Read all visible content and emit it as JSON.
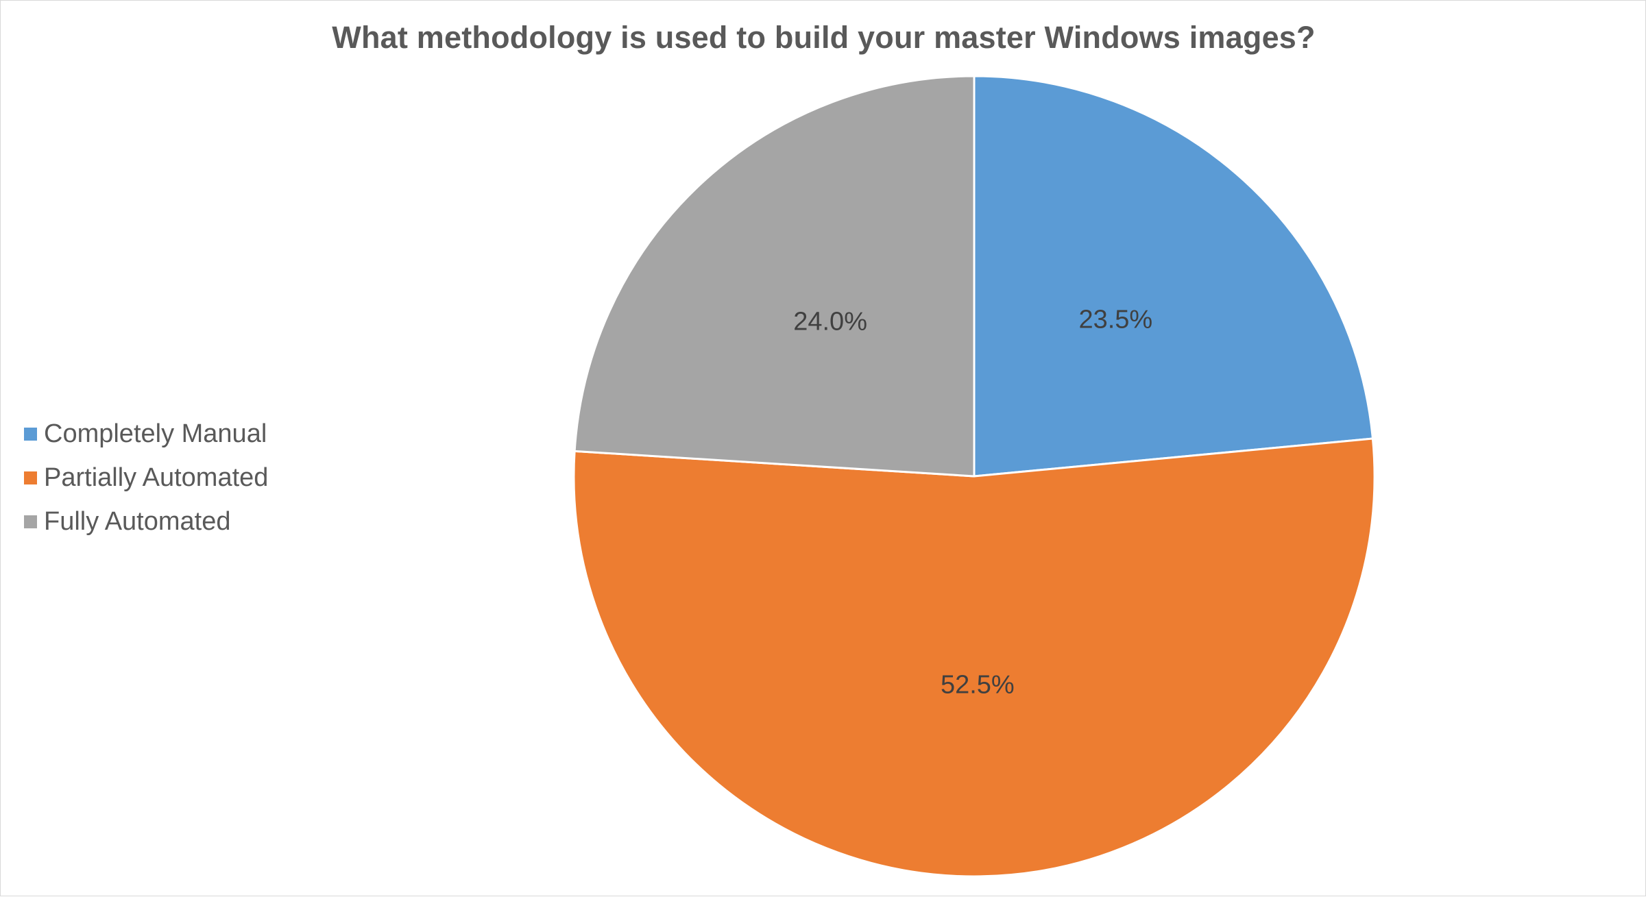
{
  "chart_data": {
    "type": "pie",
    "title": "What methodology is used to build your master Windows images?",
    "categories": [
      "Completely Manual",
      "Partially Automated",
      "Fully Automated"
    ],
    "values": [
      23.5,
      52.5,
      24.0
    ],
    "value_labels": [
      "23.5%",
      "52.5%",
      "24.0%"
    ],
    "colors": [
      "#5b9bd5",
      "#ed7d31",
      "#a5a5a5"
    ],
    "legend_position": "left",
    "start_angle": "12 o'clock",
    "direction": "clockwise"
  }
}
